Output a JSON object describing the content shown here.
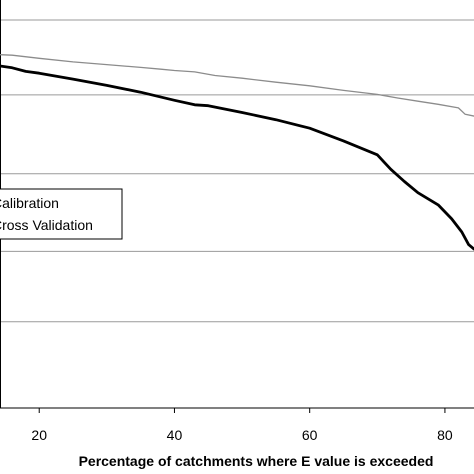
{
  "chart_data": {
    "type": "line",
    "title": "",
    "xlabel": "Percentage of catchments where E value is exceeded",
    "ylabel": "",
    "xlim": [
      14.2,
      84.3
    ],
    "x_ticks": [
      20,
      40,
      60,
      80
    ],
    "grid": true,
    "legend_placement": "center-left",
    "series": [
      {
        "name": "Calibration",
        "color": "#8c8c8c",
        "x": [
          14.2,
          16,
          20,
          25,
          30,
          35,
          38,
          40,
          43,
          46,
          50,
          55,
          60,
          65,
          70,
          73,
          76,
          79,
          82,
          83,
          84.3
        ],
        "y": [
          0.894,
          0.893,
          0.886,
          0.878,
          0.872,
          0.866,
          0.862,
          0.859,
          0.856,
          0.848,
          0.842,
          0.833,
          0.825,
          0.815,
          0.806,
          0.798,
          0.791,
          0.784,
          0.776,
          0.762,
          0.758
        ]
      },
      {
        "name": "Cross Validation",
        "color": "#000000",
        "x": [
          14.2,
          16,
          18,
          20,
          25,
          30,
          35,
          40,
          43,
          45,
          50,
          55,
          60,
          65,
          70,
          72,
          74,
          76,
          79,
          81,
          82.5,
          83.5,
          84.3
        ],
        "y": [
          0.869,
          0.865,
          0.857,
          0.853,
          0.84,
          0.826,
          0.811,
          0.793,
          0.783,
          0.781,
          0.766,
          0.75,
          0.731,
          0.703,
          0.672,
          0.64,
          0.613,
          0.588,
          0.561,
          0.53,
          0.501,
          0.473,
          0.463
        ]
      }
    ]
  }
}
